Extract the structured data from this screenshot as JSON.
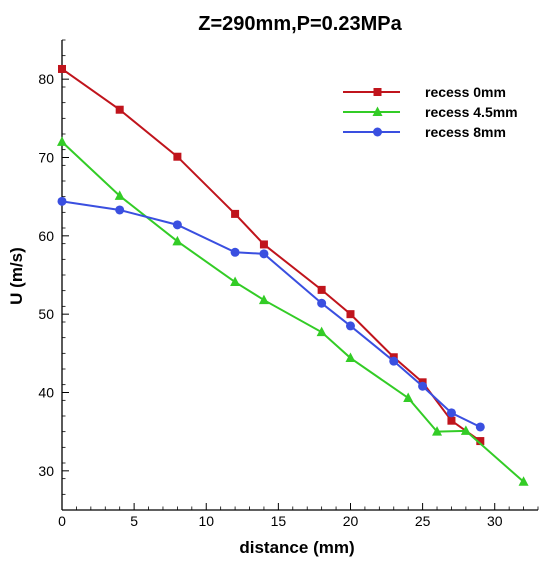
{
  "chart_data": {
    "type": "line",
    "title": "Z=290mm,P=0.23MPa",
    "xlabel": "distance (mm)",
    "ylabel": "U (m/s)",
    "xlim": [
      0,
      33
    ],
    "ylim": [
      25,
      85
    ],
    "xticks": [
      0,
      5,
      10,
      15,
      20,
      25,
      30
    ],
    "yticks": [
      30,
      40,
      50,
      60,
      70,
      80
    ],
    "grid": false,
    "legend_position": "top-right",
    "series": [
      {
        "name": "recess 0mm",
        "color": "#c0141c",
        "marker": "square",
        "x": [
          0,
          4,
          8,
          12,
          14,
          18,
          20,
          23,
          25,
          27,
          29
        ],
        "y": [
          81.3,
          76.1,
          70.1,
          62.8,
          58.9,
          53.1,
          50.0,
          44.5,
          41.3,
          36.4,
          33.8
        ]
      },
      {
        "name": "recess 4.5mm",
        "color": "#33cc26",
        "marker": "triangle",
        "x": [
          0,
          4,
          8,
          12,
          14,
          18,
          20,
          24,
          26,
          28,
          32
        ],
        "y": [
          72.0,
          65.1,
          59.3,
          54.1,
          51.8,
          47.7,
          44.4,
          39.3,
          35.0,
          35.1,
          28.6
        ]
      },
      {
        "name": "recess 8mm",
        "color": "#3a4fe0",
        "marker": "circle",
        "x": [
          0,
          4,
          8,
          12,
          14,
          18,
          20,
          23,
          25,
          27,
          29
        ],
        "y": [
          64.4,
          63.3,
          61.4,
          57.9,
          57.7,
          51.4,
          48.5,
          44.0,
          40.8,
          37.4,
          35.6
        ]
      }
    ]
  }
}
